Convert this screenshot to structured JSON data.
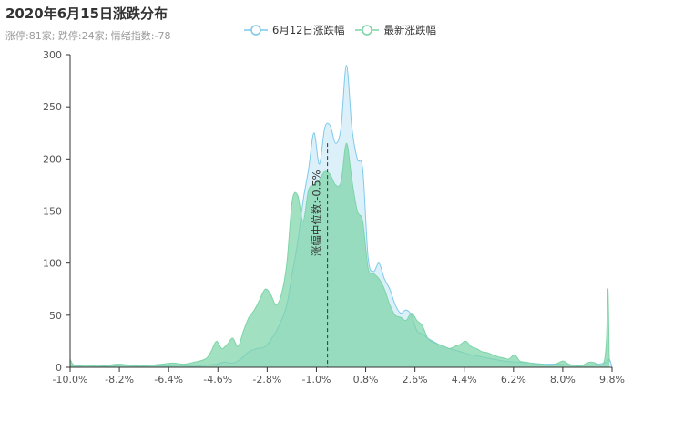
{
  "title": "2020年6月15日涨跌分布",
  "subtitle": "涨停:81家; 跌停:24家; 情绪指数:-78",
  "colors": {
    "series_prev": "#7fc9ea",
    "series_latest": "#7dd4a7",
    "median_line": "#333333"
  },
  "chart_data": {
    "type": "area",
    "title": "2020年6月15日涨跌分布",
    "xlabel": "",
    "ylabel": "",
    "xlim": [
      -10.0,
      10.0
    ],
    "ylim": [
      0,
      300
    ],
    "x_ticks": [
      "-10.0%",
      "-8.2%",
      "-6.4%",
      "-4.6%",
      "-2.8%",
      "-1.0%",
      "0.8%",
      "2.6%",
      "4.4%",
      "6.2%",
      "8.0%",
      "9.8%"
    ],
    "y_ticks": [
      0,
      50,
      100,
      150,
      200,
      250,
      300
    ],
    "legend_position": "top-center",
    "median": {
      "x": -0.5,
      "label": "涨幅中位数:-0.5%"
    },
    "series": [
      {
        "name": "6月12日涨跌幅",
        "x": [
          -10.0,
          -9.8,
          -9.5,
          -9.0,
          -8.5,
          -8.0,
          -7.5,
          -7.0,
          -6.5,
          -6.0,
          -5.5,
          -5.0,
          -4.6,
          -4.3,
          -4.0,
          -3.7,
          -3.4,
          -3.1,
          -2.8,
          -2.5,
          -2.2,
          -2.0,
          -1.8,
          -1.6,
          -1.4,
          -1.2,
          -1.0,
          -0.8,
          -0.6,
          -0.4,
          -0.2,
          0.0,
          0.2,
          0.4,
          0.6,
          0.8,
          1.0,
          1.2,
          1.4,
          1.6,
          1.8,
          2.0,
          2.2,
          2.4,
          2.6,
          2.8,
          3.0,
          3.2,
          3.4,
          3.6,
          3.8,
          4.0,
          4.4,
          4.8,
          5.2,
          5.6,
          6.0,
          6.5,
          7.0,
          7.5,
          8.0,
          8.5,
          9.0,
          9.5,
          9.8,
          9.9,
          10.0
        ],
        "values": [
          2,
          1,
          2,
          1,
          1,
          2,
          1,
          2,
          1,
          2,
          1,
          2,
          3,
          5,
          4,
          8,
          15,
          18,
          20,
          30,
          45,
          60,
          90,
          120,
          160,
          190,
          225,
          195,
          230,
          232,
          215,
          230,
          290,
          230,
          200,
          190,
          105,
          92,
          100,
          85,
          75,
          60,
          52,
          55,
          50,
          35,
          32,
          28,
          25,
          22,
          20,
          18,
          15,
          12,
          10,
          8,
          6,
          5,
          4,
          3,
          3,
          2,
          2,
          3,
          5,
          8,
          0
        ]
      },
      {
        "name": "最新涨跌幅",
        "x": [
          -10.0,
          -9.9,
          -9.7,
          -9.4,
          -9.0,
          -8.6,
          -8.2,
          -7.8,
          -7.4,
          -7.0,
          -6.6,
          -6.2,
          -5.8,
          -5.4,
          -5.0,
          -4.8,
          -4.6,
          -4.4,
          -4.2,
          -4.0,
          -3.8,
          -3.6,
          -3.4,
          -3.2,
          -3.0,
          -2.8,
          -2.6,
          -2.4,
          -2.2,
          -2.0,
          -1.8,
          -1.6,
          -1.4,
          -1.2,
          -1.0,
          -0.8,
          -0.6,
          -0.4,
          -0.2,
          0.0,
          0.2,
          0.4,
          0.6,
          0.8,
          1.0,
          1.2,
          1.4,
          1.6,
          1.8,
          2.0,
          2.2,
          2.4,
          2.6,
          2.8,
          3.0,
          3.2,
          3.4,
          3.6,
          3.8,
          4.0,
          4.2,
          4.4,
          4.6,
          4.8,
          5.0,
          5.2,
          5.4,
          5.6,
          5.8,
          6.0,
          6.2,
          6.4,
          6.6,
          6.8,
          7.0,
          7.2,
          7.4,
          7.6,
          7.8,
          8.0,
          8.2,
          8.4,
          8.6,
          8.8,
          9.0,
          9.2,
          9.4,
          9.6,
          9.7,
          9.75,
          9.8,
          9.85,
          9.9
        ],
        "values": [
          8,
          3,
          1,
          2,
          1,
          2,
          3,
          2,
          1,
          2,
          3,
          4,
          3,
          5,
          8,
          15,
          25,
          18,
          22,
          28,
          20,
          35,
          48,
          55,
          65,
          75,
          70,
          60,
          70,
          100,
          160,
          165,
          140,
          170,
          175,
          180,
          188,
          185,
          175,
          178,
          215,
          180,
          150,
          140,
          95,
          90,
          85,
          75,
          60,
          50,
          48,
          45,
          52,
          45,
          40,
          28,
          24,
          22,
          20,
          18,
          20,
          22,
          25,
          20,
          18,
          15,
          14,
          12,
          10,
          9,
          8,
          12,
          6,
          5,
          4,
          3,
          3,
          2,
          2,
          4,
          6,
          3,
          2,
          1,
          3,
          5,
          4,
          2,
          5,
          12,
          30,
          75,
          5
        ]
      }
    ]
  }
}
